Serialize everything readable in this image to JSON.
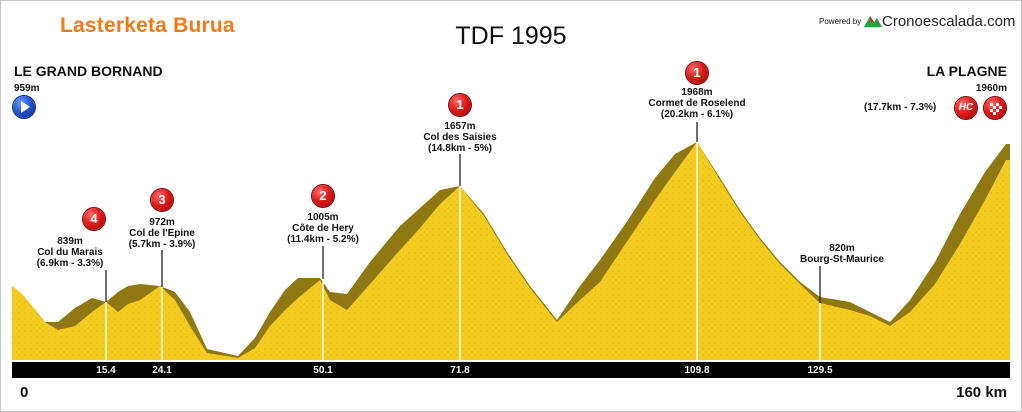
{
  "brand": "Lasterketa Burua",
  "title": "TDF 1995",
  "powered_by": "Powered by",
  "site": "Cronoescalada.com",
  "start": {
    "name": "LE GRAND BORNAND",
    "altitude": "959m"
  },
  "finish": {
    "name": "LA PLAGNE",
    "altitude": "1960m",
    "stats": "(17.7km - 7.3%)",
    "category": "HC"
  },
  "distance": {
    "start": "0",
    "end": "160 km"
  },
  "climbs": [
    {
      "category": "4",
      "altitude": "839m",
      "name": "Col du Marais",
      "stats": "(6.9km - 3.3%)",
      "km": "15.4"
    },
    {
      "category": "3",
      "altitude": "972m",
      "name": "Col de l'Epine",
      "stats": "(5.7km - 3.9%)",
      "km": "24.1"
    },
    {
      "category": "2",
      "altitude": "1005m",
      "name": "Côte de Hery",
      "stats": "(11.4km - 5.2%)",
      "km": "50.1"
    },
    {
      "category": "1",
      "altitude": "1657m",
      "name": "Col des Saisies",
      "stats": "(14.8km - 5%)",
      "km": "71.8"
    },
    {
      "category": "1",
      "altitude": "1968m",
      "name": "Cormet de Roselend",
      "stats": "(20.2km - 6.1%)",
      "km": "109.8"
    }
  ],
  "town": {
    "altitude": "820m",
    "name": "Bourg-St-Maurice",
    "km": "129.5"
  },
  "colors": {
    "fill": "#f3cc1f",
    "shadow": "#8f7712",
    "brand": "#f07a1a",
    "badge": "#e01b1b"
  }
}
